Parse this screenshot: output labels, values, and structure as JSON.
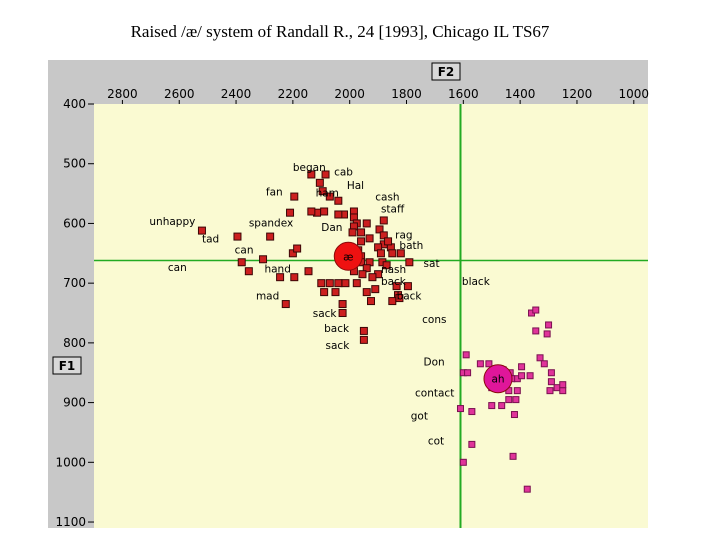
{
  "title": "Raised /æ/ system of Randall R., 24 [1993], Chicago IL TS67",
  "chart_data": {
    "type": "scatter",
    "x_axis_name": "F2",
    "y_axis_name": "F1",
    "xlim": [
      2900,
      950
    ],
    "ylim": [
      400,
      1110
    ],
    "x_ticks": [
      2800,
      2600,
      2400,
      2200,
      2000,
      1800,
      1600,
      1400,
      1200,
      1000
    ],
    "y_ticks": [
      400,
      500,
      600,
      700,
      800,
      900,
      1000,
      1100
    ],
    "grand_means": {
      "F2": 1610,
      "F1": 662
    },
    "colors": {
      "plot_bg": "#fafad2",
      "frame": "#c8c8c8",
      "raised": "#cc1f1f",
      "raised_dark": "#3a0707",
      "low": "#e0339a",
      "mean_line": "#22aa22"
    },
    "means": [
      {
        "label": "æ",
        "F2": 2005,
        "F1": 655,
        "color": "#ee1111"
      },
      {
        "label": "ah",
        "F2": 1478,
        "F1": 860,
        "color": "#e0169a"
      }
    ],
    "series": [
      {
        "name": "raised ae",
        "points": [
          [
            2135,
            518
          ],
          [
            2085,
            518
          ],
          [
            2105,
            532
          ],
          [
            2095,
            546
          ],
          [
            2070,
            555
          ],
          [
            2040,
            562
          ],
          [
            2020,
            585
          ],
          [
            2040,
            585
          ],
          [
            2090,
            580
          ],
          [
            2115,
            582
          ],
          [
            1985,
            580
          ],
          [
            1985,
            590
          ],
          [
            1975,
            600
          ],
          [
            1985,
            605
          ],
          [
            1990,
            615
          ],
          [
            1960,
            615
          ],
          [
            1940,
            600
          ],
          [
            1895,
            610
          ],
          [
            1880,
            595
          ],
          [
            1880,
            620
          ],
          [
            1960,
            630
          ],
          [
            1930,
            625
          ],
          [
            1880,
            635
          ],
          [
            1900,
            640
          ],
          [
            1855,
            640
          ],
          [
            1890,
            650
          ],
          [
            1850,
            650
          ],
          [
            1820,
            650
          ],
          [
            1970,
            645
          ],
          [
            1960,
            655
          ],
          [
            1960,
            665
          ],
          [
            1930,
            665
          ],
          [
            1940,
            675
          ],
          [
            1885,
            665
          ],
          [
            1870,
            670
          ],
          [
            1900,
            685
          ],
          [
            1985,
            680
          ],
          [
            1955,
            685
          ],
          [
            1920,
            690
          ],
          [
            1975,
            700
          ],
          [
            2015,
            700
          ],
          [
            2040,
            700
          ],
          [
            2070,
            700
          ],
          [
            2100,
            700
          ],
          [
            2090,
            715
          ],
          [
            2050,
            715
          ],
          [
            2025,
            735
          ],
          [
            2025,
            750
          ],
          [
            1940,
            715
          ],
          [
            1925,
            730
          ],
          [
            1910,
            710
          ],
          [
            1830,
            720
          ],
          [
            1835,
            705
          ],
          [
            1850,
            730
          ],
          [
            1950,
            780
          ],
          [
            1950,
            795
          ],
          [
            2145,
            680
          ],
          [
            2195,
            690
          ],
          [
            2245,
            690
          ],
          [
            2355,
            680
          ],
          [
            2200,
            650
          ],
          [
            2305,
            660
          ],
          [
            2380,
            665
          ],
          [
            2395,
            622
          ],
          [
            2280,
            622
          ],
          [
            2520,
            612
          ],
          [
            2135,
            580
          ],
          [
            2195,
            555
          ],
          [
            2185,
            642
          ],
          [
            1865,
            630
          ],
          [
            1790,
            665
          ],
          [
            1795,
            705
          ],
          [
            1825,
            725
          ],
          [
            2225,
            735
          ],
          [
            2210,
            582
          ]
        ]
      },
      {
        "name": "low a",
        "points": [
          [
            1590,
            820
          ],
          [
            1540,
            835
          ],
          [
            1510,
            835
          ],
          [
            1330,
            825
          ],
          [
            1360,
            750
          ],
          [
            1345,
            745
          ],
          [
            1300,
            770
          ],
          [
            1305,
            785
          ],
          [
            1600,
            850
          ],
          [
            1585,
            850
          ],
          [
            1490,
            845
          ],
          [
            1460,
            845
          ],
          [
            1435,
            850
          ],
          [
            1410,
            860
          ],
          [
            1395,
            855
          ],
          [
            1365,
            855
          ],
          [
            1290,
            865
          ],
          [
            1270,
            875
          ],
          [
            1250,
            880
          ],
          [
            1440,
            880
          ],
          [
            1500,
            875
          ],
          [
            1415,
            895
          ],
          [
            1420,
            920
          ],
          [
            1500,
            905
          ],
          [
            1465,
            905
          ],
          [
            1570,
            915
          ],
          [
            1610,
            910
          ],
          [
            1570,
            970
          ],
          [
            1425,
            990
          ],
          [
            1375,
            1045
          ],
          [
            1600,
            1000
          ],
          [
            1290,
            850
          ],
          [
            1315,
            835
          ],
          [
            1345,
            780
          ],
          [
            1410,
            880
          ],
          [
            1440,
            895
          ],
          [
            1395,
            840
          ],
          [
            1250,
            870
          ],
          [
            1295,
            880
          ],
          [
            1430,
            860
          ]
        ]
      }
    ],
    "annotations": [
      {
        "text": "began",
        "F2": 2200,
        "F1": 512
      },
      {
        "text": "cab",
        "F2": 2055,
        "F1": 520
      },
      {
        "text": "Hal",
        "F2": 2010,
        "F1": 542
      },
      {
        "text": "fan",
        "F2": 2295,
        "F1": 553
      },
      {
        "text": "ham",
        "F2": 2120,
        "F1": 555
      },
      {
        "text": "cash",
        "F2": 1910,
        "F1": 562
      },
      {
        "text": "staff",
        "F2": 1890,
        "F1": 582
      },
      {
        "text": "unhappy",
        "F2": 2705,
        "F1": 603
      },
      {
        "text": "spandex",
        "F2": 2355,
        "F1": 605
      },
      {
        "text": "Dan",
        "F2": 2100,
        "F1": 613
      },
      {
        "text": "rag",
        "F2": 1840,
        "F1": 625
      },
      {
        "text": "tad",
        "F2": 2520,
        "F1": 632
      },
      {
        "text": "bath",
        "F2": 1825,
        "F1": 643
      },
      {
        "text": "can",
        "F2": 2405,
        "F1": 650
      },
      {
        "text": "sat",
        "F2": 1740,
        "F1": 673
      },
      {
        "text": "can",
        "F2": 2640,
        "F1": 680
      },
      {
        "text": "hand",
        "F2": 2300,
        "F1": 682
      },
      {
        "text": "nash",
        "F2": 1890,
        "F1": 683
      },
      {
        "text": "back",
        "F2": 1890,
        "F1": 703
      },
      {
        "text": "black",
        "F2": 1605,
        "F1": 703
      },
      {
        "text": "mad",
        "F2": 2330,
        "F1": 727
      },
      {
        "text": "back",
        "F2": 1835,
        "F1": 727
      },
      {
        "text": "sack",
        "F2": 2130,
        "F1": 757
      },
      {
        "text": "cons",
        "F2": 1745,
        "F1": 767
      },
      {
        "text": "back",
        "F2": 2090,
        "F1": 782
      },
      {
        "text": "sack",
        "F2": 2085,
        "F1": 810
      },
      {
        "text": "Don",
        "F2": 1740,
        "F1": 838
      },
      {
        "text": "contact",
        "F2": 1770,
        "F1": 890
      },
      {
        "text": "got",
        "F2": 1785,
        "F1": 928
      },
      {
        "text": "cot",
        "F2": 1725,
        "F1": 970
      }
    ]
  }
}
